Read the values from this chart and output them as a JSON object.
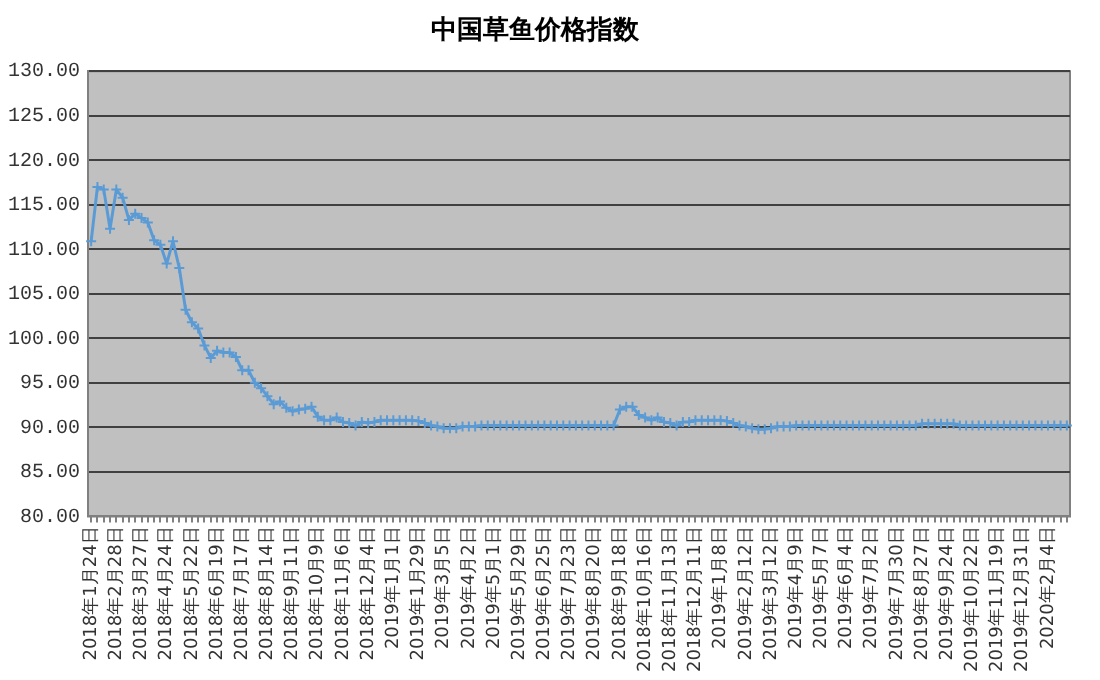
{
  "chart_data": {
    "type": "line",
    "title": "中国草鱼价格指数",
    "categories": [
      "2018年1月24日",
      null,
      null,
      null,
      "2018年2月28日",
      null,
      null,
      null,
      "2018年3月27日",
      null,
      null,
      null,
      "2018年4月24日",
      null,
      null,
      null,
      "2018年5月22日",
      null,
      null,
      null,
      "2018年6月19日",
      null,
      null,
      null,
      "2018年7月17日",
      null,
      null,
      null,
      "2018年8月14日",
      null,
      null,
      null,
      "2018年9月11日",
      null,
      null,
      null,
      "2018年10月9日",
      null,
      null,
      null,
      "2018年11月6日",
      null,
      null,
      null,
      "2018年12月4日",
      null,
      null,
      null,
      "2019年1月1日",
      null,
      null,
      null,
      "2019年1月29日",
      null,
      null,
      null,
      "2019年3月5日",
      null,
      null,
      null,
      "2019年4月2日",
      null,
      null,
      null,
      "2019年5月1日",
      null,
      null,
      null,
      "2019年5月29日",
      null,
      null,
      null,
      "2019年6月25日",
      null,
      null,
      null,
      "2019年7月23日",
      null,
      null,
      null,
      "2019年8月20日",
      null,
      null,
      null,
      "2018年9月18日",
      null,
      null,
      null,
      "2018年10月16日",
      null,
      null,
      null,
      "2018年11月13日",
      null,
      null,
      null,
      "2018年12月11日",
      null,
      null,
      null,
      "2019年1月8日",
      null,
      null,
      null,
      "2019年2月12日",
      null,
      null,
      null,
      "2019年3月12日",
      null,
      null,
      null,
      "2019年4月9日",
      null,
      null,
      null,
      "2019年5月7日",
      null,
      null,
      null,
      "2019年6月4日",
      null,
      null,
      null,
      "2019年7月2日",
      null,
      null,
      null,
      "2019年7月30日",
      null,
      null,
      null,
      "2019年8月27日",
      null,
      null,
      null,
      "2019年9月24日",
      null,
      null,
      null,
      "2019年10月22日",
      null,
      null,
      null,
      "2019年11月19日",
      null,
      null,
      null,
      "2019年12月31日",
      null,
      null,
      null,
      "2020年2月4日",
      null,
      null,
      null
    ],
    "series": [
      {
        "color": "#5b9bd5",
        "values": [
          110.9,
          117.0,
          116.7,
          112.3,
          116.7,
          115.8,
          113.3,
          114.0,
          113.5,
          113.0,
          111.0,
          110.5,
          108.4,
          110.9,
          107.9,
          103.2,
          101.8,
          101.1,
          99.2,
          97.8,
          98.6,
          98.4,
          98.4,
          97.9,
          96.4,
          96.4,
          95.0,
          94.4,
          93.5,
          92.6,
          92.9,
          92.2,
          91.8,
          92.0,
          92.1,
          92.3,
          91.2,
          90.8,
          90.8,
          91.1,
          90.6,
          90.5,
          90.2,
          90.6,
          90.5,
          90.6,
          90.8,
          90.8,
          90.8,
          90.8,
          90.8,
          90.8,
          90.7,
          90.5,
          90.2,
          90.1,
          89.9,
          89.9,
          89.9,
          90.1,
          90.1,
          90.1,
          90.2,
          90.2,
          90.2,
          90.2,
          90.2,
          90.2,
          90.2,
          90.2,
          90.2,
          90.2,
          90.2,
          90.2,
          90.2,
          90.2,
          90.2,
          90.2,
          90.2,
          90.2,
          90.2,
          90.2,
          90.2,
          90.2,
          92.0,
          92.3,
          92.3,
          91.4,
          91.1,
          90.8,
          91.1,
          90.6,
          90.5,
          90.2,
          90.6,
          90.6,
          90.8,
          90.8,
          90.8,
          90.8,
          90.8,
          90.7,
          90.5,
          90.2,
          90.1,
          89.9,
          89.8,
          89.8,
          89.9,
          90.1,
          90.1,
          90.1,
          90.2,
          90.2,
          90.2,
          90.2,
          90.2,
          90.2,
          90.2,
          90.2,
          90.2,
          90.2,
          90.2,
          90.2,
          90.2,
          90.2,
          90.2,
          90.2,
          90.2,
          90.2,
          90.2,
          90.2,
          90.4,
          90.4,
          90.4,
          90.4,
          90.4,
          90.4,
          90.2,
          90.2,
          90.2,
          90.2,
          90.2,
          90.2,
          90.2,
          90.2,
          90.2,
          90.2,
          90.2,
          90.2,
          90.2,
          90.2,
          90.2,
          90.2,
          90.2,
          90.2
        ]
      }
    ],
    "ylim": [
      80,
      130
    ],
    "yticks": [
      {
        "value": 80,
        "label": "80.00"
      },
      {
        "value": 85,
        "label": "85.00"
      },
      {
        "value": 90,
        "label": "90.00"
      },
      {
        "value": 95,
        "label": "95.00"
      },
      {
        "value": 100,
        "label": "100.00"
      },
      {
        "value": 105,
        "label": "105.00"
      },
      {
        "value": 110,
        "label": "110.00"
      },
      {
        "value": 115,
        "label": "115.00"
      },
      {
        "value": 120,
        "label": "120.00"
      },
      {
        "value": 125,
        "label": "125.00"
      },
      {
        "value": 130,
        "label": "130.00"
      }
    ],
    "grid": "y",
    "marker": "cross",
    "line_style": "solid"
  }
}
